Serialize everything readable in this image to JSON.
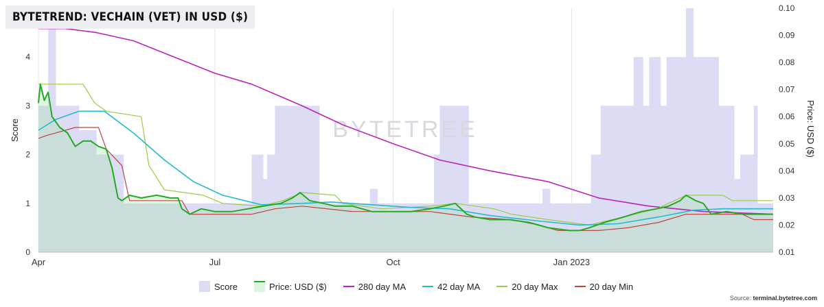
{
  "header": {
    "title": "BYTETREND: VECHAIN (VET) IN USD ($)"
  },
  "watermark": "BYTETREE",
  "source": {
    "prefix": "Source: ",
    "site": "terminal.bytetree.com"
  },
  "colors": {
    "score": "#dcdcf5",
    "price_line": "#22aa22",
    "price_fill": "#dcf5dc",
    "ma280": "#bb22bb",
    "ma42": "#22bbcc",
    "max20": "#99cc44",
    "min20": "#bb4444",
    "overlap": "#c9dddb"
  },
  "legend": [
    {
      "key": "score",
      "label": "Score"
    },
    {
      "key": "price",
      "label": "Price: USD ($)"
    },
    {
      "key": "ma280",
      "label": "280 day MA"
    },
    {
      "key": "ma42",
      "label": "42 day MA"
    },
    {
      "key": "max20",
      "label": "20 day Max"
    },
    {
      "key": "min20",
      "label": "20 day Min"
    }
  ],
  "chart_data": {
    "type": "line",
    "title": "BYTETREND: VECHAIN (VET) IN USD ($)",
    "x_range": [
      "2022-04-01",
      "2023-04-15"
    ],
    "x_ticks": [
      {
        "date": "2022-04-01",
        "label": "Apr"
      },
      {
        "date": "2022-07-01",
        "label": "Jul"
      },
      {
        "date": "2022-10-01",
        "label": "Oct"
      },
      {
        "date": "2023-01-01",
        "label": "Jan 2023"
      }
    ],
    "y_left": {
      "label": "Score",
      "range": [
        0,
        5
      ],
      "ticks": [
        0,
        1,
        2,
        3,
        4
      ]
    },
    "y_right": {
      "label": "Price: USD ($)",
      "range": [
        0.01,
        0.1
      ],
      "ticks": [
        "0.01",
        "0.02",
        "0.03",
        "0.04",
        "0.05",
        "0.06",
        "0.07",
        "0.08",
        "0.09",
        "0.10"
      ]
    },
    "grid": "vertical",
    "legend_position": "bottom",
    "score_steps": [
      [
        "2022-04-01",
        3
      ],
      [
        "2022-04-06",
        5
      ],
      [
        "2022-04-10",
        3
      ],
      [
        "2022-04-22",
        2.5
      ],
      [
        "2022-05-01",
        2
      ],
      [
        "2022-05-15",
        1
      ],
      [
        "2022-07-20",
        2
      ],
      [
        "2022-07-26",
        1.5
      ],
      [
        "2022-07-28",
        2
      ],
      [
        "2022-08-01",
        3
      ],
      [
        "2022-08-24",
        1
      ],
      [
        "2022-09-19",
        1.3
      ],
      [
        "2022-09-23",
        1
      ],
      [
        "2022-10-22",
        2
      ],
      [
        "2022-10-25",
        3
      ],
      [
        "2022-11-09",
        1
      ],
      [
        "2022-12-17",
        1.3
      ],
      [
        "2022-12-21",
        1
      ],
      [
        "2023-01-11",
        2
      ],
      [
        "2023-01-16",
        3
      ],
      [
        "2023-02-02",
        4
      ],
      [
        "2023-02-07",
        3
      ],
      [
        "2023-02-10",
        4
      ],
      [
        "2023-02-16",
        3
      ],
      [
        "2023-02-19",
        4
      ],
      [
        "2023-03-01",
        5
      ],
      [
        "2023-03-05",
        4
      ],
      [
        "2023-03-18",
        3
      ],
      [
        "2023-03-26",
        1.5
      ],
      [
        "2023-03-29",
        2
      ],
      [
        "2023-04-05",
        3
      ],
      [
        "2023-04-07",
        1
      ],
      [
        "2023-04-15",
        1
      ]
    ],
    "series": [
      {
        "key": "price",
        "name": "Price: USD ($)",
        "points": [
          [
            "2022-04-01",
            0.065
          ],
          [
            "2022-04-02",
            0.072
          ],
          [
            "2022-04-04",
            0.066
          ],
          [
            "2022-04-06",
            0.069
          ],
          [
            "2022-04-08",
            0.06
          ],
          [
            "2022-04-12",
            0.056
          ],
          [
            "2022-04-16",
            0.054
          ],
          [
            "2022-04-20",
            0.049
          ],
          [
            "2022-04-24",
            0.051
          ],
          [
            "2022-04-28",
            0.051
          ],
          [
            "2022-05-02",
            0.049
          ],
          [
            "2022-05-06",
            0.048
          ],
          [
            "2022-05-09",
            0.041
          ],
          [
            "2022-05-12",
            0.03
          ],
          [
            "2022-05-14",
            0.029
          ],
          [
            "2022-05-18",
            0.031
          ],
          [
            "2022-05-24",
            0.03
          ],
          [
            "2022-06-01",
            0.031
          ],
          [
            "2022-06-08",
            0.03
          ],
          [
            "2022-06-12",
            0.03
          ],
          [
            "2022-06-14",
            0.026
          ],
          [
            "2022-06-18",
            0.024
          ],
          [
            "2022-06-24",
            0.026
          ],
          [
            "2022-07-01",
            0.025
          ],
          [
            "2022-07-10",
            0.025
          ],
          [
            "2022-07-18",
            0.026
          ],
          [
            "2022-07-26",
            0.027
          ],
          [
            "2022-08-04",
            0.028
          ],
          [
            "2022-08-10",
            0.03
          ],
          [
            "2022-08-14",
            0.032
          ],
          [
            "2022-08-19",
            0.029
          ],
          [
            "2022-08-26",
            0.028
          ],
          [
            "2022-09-01",
            0.027
          ],
          [
            "2022-09-10",
            0.027
          ],
          [
            "2022-09-20",
            0.025
          ],
          [
            "2022-10-01",
            0.025
          ],
          [
            "2022-10-10",
            0.025
          ],
          [
            "2022-10-20",
            0.026
          ],
          [
            "2022-10-27",
            0.027
          ],
          [
            "2022-11-02",
            0.028
          ],
          [
            "2022-11-08",
            0.024
          ],
          [
            "2022-11-12",
            0.023
          ],
          [
            "2022-11-20",
            0.022
          ],
          [
            "2022-11-30",
            0.022
          ],
          [
            "2022-12-10",
            0.021
          ],
          [
            "2022-12-20",
            0.019
          ],
          [
            "2022-12-31",
            0.018
          ],
          [
            "2023-01-05",
            0.018
          ],
          [
            "2023-01-10",
            0.019
          ],
          [
            "2023-01-18",
            0.021
          ],
          [
            "2023-01-28",
            0.023
          ],
          [
            "2023-02-06",
            0.025
          ],
          [
            "2023-02-14",
            0.026
          ],
          [
            "2023-02-20",
            0.027
          ],
          [
            "2023-02-26",
            0.029
          ],
          [
            "2023-03-01",
            0.031
          ],
          [
            "2023-03-06",
            0.029
          ],
          [
            "2023-03-10",
            0.028
          ],
          [
            "2023-03-14",
            0.024
          ],
          [
            "2023-03-22",
            0.025
          ],
          [
            "2023-03-30",
            0.024
          ],
          [
            "2023-04-08",
            0.024
          ],
          [
            "2023-04-15",
            0.024
          ]
        ]
      },
      {
        "key": "ma280",
        "name": "280 day MA",
        "points": [
          [
            "2022-04-01",
            0.0925
          ],
          [
            "2022-04-15",
            0.0925
          ],
          [
            "2022-05-01",
            0.091
          ],
          [
            "2022-05-20",
            0.088
          ],
          [
            "2022-06-10",
            0.082
          ],
          [
            "2022-07-01",
            0.076
          ],
          [
            "2022-07-20",
            0.072
          ],
          [
            "2022-08-15",
            0.064
          ],
          [
            "2022-09-05",
            0.057
          ],
          [
            "2022-10-01",
            0.05
          ],
          [
            "2022-10-25",
            0.044
          ],
          [
            "2022-11-20",
            0.04
          ],
          [
            "2022-12-20",
            0.036
          ],
          [
            "2023-01-15",
            0.03
          ],
          [
            "2023-02-10",
            0.027
          ],
          [
            "2023-03-10",
            0.025
          ],
          [
            "2023-04-15",
            0.024
          ]
        ]
      },
      {
        "key": "ma42",
        "name": "42 day MA",
        "points": [
          [
            "2022-04-01",
            0.055
          ],
          [
            "2022-04-10",
            0.059
          ],
          [
            "2022-04-22",
            0.062
          ],
          [
            "2022-05-05",
            0.062
          ],
          [
            "2022-05-20",
            0.054
          ],
          [
            "2022-06-05",
            0.044
          ],
          [
            "2022-06-20",
            0.036
          ],
          [
            "2022-07-05",
            0.031
          ],
          [
            "2022-07-25",
            0.0275
          ],
          [
            "2022-08-15",
            0.028
          ],
          [
            "2022-08-30",
            0.0285
          ],
          [
            "2022-09-20",
            0.0275
          ],
          [
            "2022-10-10",
            0.0265
          ],
          [
            "2022-10-30",
            0.026
          ],
          [
            "2022-11-20",
            0.0235
          ],
          [
            "2022-12-15",
            0.0215
          ],
          [
            "2023-01-05",
            0.02
          ],
          [
            "2023-01-25",
            0.0205
          ],
          [
            "2023-02-15",
            0.023
          ],
          [
            "2023-03-05",
            0.0255
          ],
          [
            "2023-03-20",
            0.026
          ],
          [
            "2023-04-15",
            0.026
          ]
        ]
      },
      {
        "key": "max20",
        "name": "20 day Max",
        "points": [
          [
            "2022-04-01",
            0.072
          ],
          [
            "2022-04-24",
            0.072
          ],
          [
            "2022-04-30",
            0.065
          ],
          [
            "2022-05-06",
            0.062
          ],
          [
            "2022-05-24",
            0.06
          ],
          [
            "2022-05-28",
            0.042
          ],
          [
            "2022-06-05",
            0.033
          ],
          [
            "2022-06-25",
            0.031
          ],
          [
            "2022-07-05",
            0.028
          ],
          [
            "2022-07-25",
            0.027
          ],
          [
            "2022-08-05",
            0.029
          ],
          [
            "2022-08-15",
            0.032
          ],
          [
            "2022-09-01",
            0.031
          ],
          [
            "2022-09-05",
            0.028
          ],
          [
            "2022-09-25",
            0.026
          ],
          [
            "2022-10-20",
            0.027
          ],
          [
            "2022-11-02",
            0.028
          ],
          [
            "2022-11-22",
            0.026
          ],
          [
            "2022-12-01",
            0.024
          ],
          [
            "2022-12-20",
            0.022
          ],
          [
            "2023-01-10",
            0.02
          ],
          [
            "2023-01-28",
            0.023
          ],
          [
            "2023-02-14",
            0.026
          ],
          [
            "2023-03-01",
            0.031
          ],
          [
            "2023-03-20",
            0.031
          ],
          [
            "2023-03-25",
            0.029
          ],
          [
            "2023-04-15",
            0.029
          ]
        ]
      },
      {
        "key": "min20",
        "name": "20 day Min",
        "points": [
          [
            "2022-04-01",
            0.052
          ],
          [
            "2022-04-05",
            0.053
          ],
          [
            "2022-04-20",
            0.056
          ],
          [
            "2022-05-02",
            0.056
          ],
          [
            "2022-05-06",
            0.048
          ],
          [
            "2022-05-14",
            0.042
          ],
          [
            "2022-05-18",
            0.029
          ],
          [
            "2022-06-14",
            0.029
          ],
          [
            "2022-06-18",
            0.024
          ],
          [
            "2022-07-20",
            0.024
          ],
          [
            "2022-08-01",
            0.026
          ],
          [
            "2022-08-15",
            0.027
          ],
          [
            "2022-09-10",
            0.025
          ],
          [
            "2022-10-20",
            0.025
          ],
          [
            "2022-11-10",
            0.023
          ],
          [
            "2022-12-01",
            0.022
          ],
          [
            "2022-12-15",
            0.02
          ],
          [
            "2022-12-25",
            0.018
          ],
          [
            "2023-01-15",
            0.018
          ],
          [
            "2023-01-30",
            0.019
          ],
          [
            "2023-02-15",
            0.021
          ],
          [
            "2023-03-01",
            0.024
          ],
          [
            "2023-03-30",
            0.024
          ],
          [
            "2023-04-05",
            0.022
          ],
          [
            "2023-04-15",
            0.022
          ]
        ]
      }
    ]
  }
}
